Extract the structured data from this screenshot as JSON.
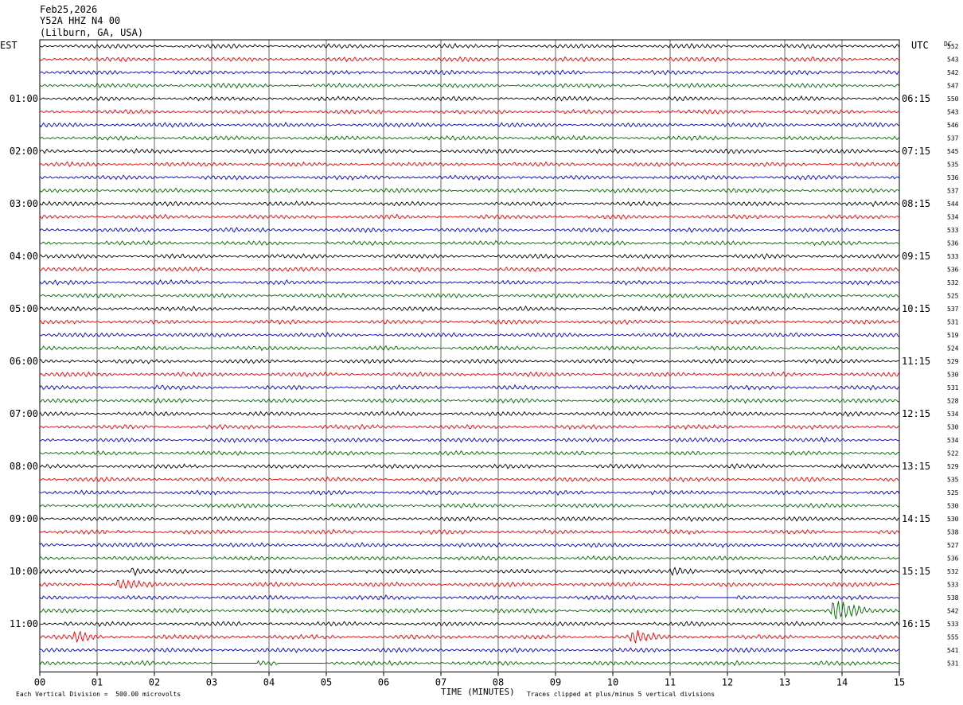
{
  "header": {
    "date": "Feb25,2026",
    "station": "Y52A HHZ N4 00",
    "location": "(Lilburn, GA, USA)"
  },
  "left_axis_label": "EST",
  "right_axis_label": "UTC",
  "dc_label": "DC",
  "footer": {
    "scale_note": "Each Vertical Division =  500.00 microvolts",
    "xlabel": "TIME (MINUTES)",
    "clip_note": "Traces clipped at plus/minus 5 vertical divisions"
  },
  "colors": [
    "#000000",
    "#ee0000",
    "#0000cc",
    "#006600"
  ],
  "chart_data": {
    "type": "line",
    "title": "Y52A HHZ N4 00",
    "xlabel": "TIME (MINUTES)",
    "xlim": [
      0,
      15
    ],
    "x_ticks": [
      "00",
      "01",
      "02",
      "03",
      "04",
      "05",
      "06",
      "07",
      "08",
      "09",
      "10",
      "11",
      "12",
      "13",
      "14",
      "15"
    ],
    "left_hour_labels": [
      "01:00",
      "02:00",
      "03:00",
      "04:00",
      "05:00",
      "06:00",
      "07:00",
      "08:00",
      "09:00",
      "10:00",
      "11:00"
    ],
    "right_hour_labels": [
      "06:15",
      "07:15",
      "08:15",
      "09:15",
      "10:15",
      "11:15",
      "12:15",
      "13:15",
      "14:15",
      "15:15",
      "16:15"
    ],
    "dc_offsets": [
      552,
      543,
      542,
      547,
      550,
      543,
      546,
      537,
      545,
      535,
      536,
      537,
      544,
      534,
      533,
      536,
      533,
      536,
      532,
      525,
      537,
      531,
      519,
      524,
      529,
      530,
      531,
      528,
      534,
      530,
      534,
      522,
      529,
      535,
      525,
      530,
      530,
      538,
      527,
      536,
      532,
      533,
      538,
      542,
      533,
      555,
      541,
      531
    ],
    "events": [
      {
        "trace": 40,
        "minute": 1.6,
        "duration": 0.3,
        "amp": 1.6
      },
      {
        "trace": 41,
        "minute": 1.35,
        "duration": 0.6,
        "amp": 2.2
      },
      {
        "trace": 40,
        "minute": 11.0,
        "duration": 0.7,
        "amp": 1.8
      },
      {
        "trace": 43,
        "minute": 13.8,
        "duration": 0.7,
        "amp": 4.5
      },
      {
        "trace": 45,
        "minute": 0.6,
        "duration": 0.45,
        "amp": 2.2
      },
      {
        "trace": 45,
        "minute": 10.3,
        "duration": 0.6,
        "amp": 2.6
      },
      {
        "trace": 44,
        "minute": 0.4,
        "duration": 0.2,
        "amp": 1.2
      }
    ],
    "gaps": [
      {
        "trace": 42,
        "start": 11.5,
        "end": 12.15
      },
      {
        "trace": 47,
        "start": 3.0,
        "end": 3.8
      },
      {
        "trace": 47,
        "start": 4.15,
        "end": 4.95
      }
    ]
  }
}
